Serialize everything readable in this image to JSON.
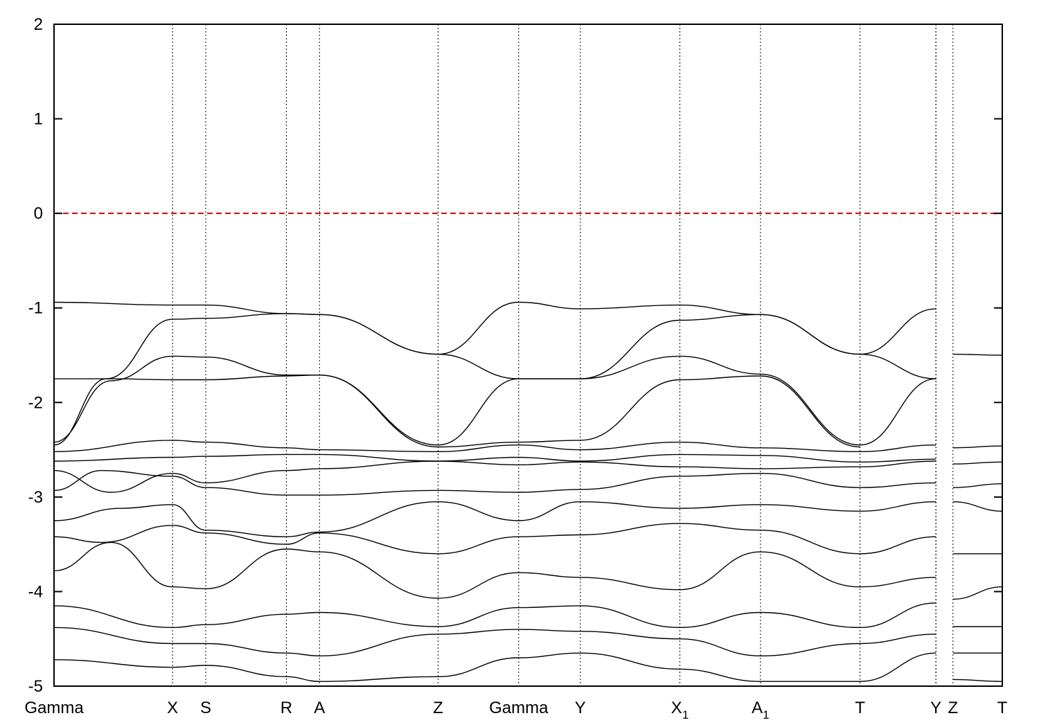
{
  "chart_data": {
    "type": "line",
    "title": "",
    "xlabel": "",
    "ylabel": "",
    "ylim": [
      -5,
      2
    ],
    "yticks": [
      "2",
      "1",
      "0",
      "-1",
      "-2",
      "-3",
      "-4",
      "-5"
    ],
    "ytick_values": [
      2,
      1,
      0,
      -1,
      -2,
      -3,
      -4,
      -5
    ],
    "xlim": [
      0,
      10
    ],
    "kpoints": [
      {
        "label": "Gamma",
        "sub": "",
        "x": 0.0
      },
      {
        "label": "X",
        "sub": "",
        "x": 1.25
      },
      {
        "label": "S",
        "sub": "",
        "x": 1.6
      },
      {
        "label": "R",
        "sub": "",
        "x": 2.45
      },
      {
        "label": "A",
        "sub": "",
        "x": 2.8
      },
      {
        "label": "Z",
        "sub": "",
        "x": 4.05
      },
      {
        "label": "Gamma",
        "sub": "",
        "x": 4.9
      },
      {
        "label": "Y",
        "sub": "",
        "x": 5.55
      },
      {
        "label": "X",
        "sub": "1",
        "x": 6.6
      },
      {
        "label": "A",
        "sub": "1",
        "x": 7.45
      },
      {
        "label": "T",
        "sub": "",
        "x": 8.5
      },
      {
        "label": "Y",
        "sub": "",
        "x": 9.3
      },
      {
        "label": "Z",
        "sub": "",
        "x": 9.48
      },
      {
        "label": "T",
        "sub": "",
        "x": 10.0
      }
    ],
    "break_after_kpoint_index": 11,
    "fermi_level": {
      "value": 0,
      "color": "#cc0000",
      "style": "dashed"
    },
    "grid": "vertical dotted lines at high-symmetry points",
    "colors": {
      "bands": "#000000",
      "fermi": "#cc0000"
    },
    "series": [
      {
        "x": [
          0,
          1.25,
          1.6,
          2.45,
          2.8,
          4.05,
          4.9,
          5.55,
          6.6,
          7.45,
          8.5,
          9.3
        ],
        "values": [
          -0.94,
          -0.97,
          -0.97,
          -1.06,
          -1.07,
          -1.49,
          -0.94,
          -1.01,
          -0.97,
          -1.07,
          -1.49,
          -1.01
        ]
      },
      {
        "x": [
          0,
          0.55,
          1.25,
          1.6,
          2.45,
          2.8,
          4.05,
          4.9,
          5.55,
          6.6,
          7.45,
          8.5,
          9.3
        ],
        "values": [
          -2.45,
          -1.75,
          -1.12,
          -1.11,
          -1.06,
          -1.07,
          -1.49,
          -1.75,
          -1.75,
          -1.13,
          -1.07,
          -1.49,
          -1.75
        ]
      },
      {
        "x": [
          0,
          0.6,
          1.25,
          1.6,
          2.45,
          2.8,
          4.05,
          4.9,
          5.55,
          6.6,
          7.45,
          8.5,
          9.3
        ],
        "values": [
          -2.42,
          -1.77,
          -1.51,
          -1.52,
          -1.71,
          -1.71,
          -2.45,
          -1.75,
          -1.75,
          -1.51,
          -1.7,
          -2.45,
          -1.75
        ]
      },
      {
        "x": [
          0,
          0.6,
          1.25,
          1.6,
          2.45,
          2.8,
          4.05,
          4.9,
          5.55,
          6.6,
          7.45,
          8.5
        ],
        "values": [
          -1.75,
          -1.75,
          -1.76,
          -1.76,
          -1.72,
          -1.71,
          -2.47,
          -2.42,
          -2.4,
          -1.76,
          -1.72,
          -2.47
        ]
      },
      {
        "x": [
          0,
          1.25,
          1.6,
          2.45,
          2.8,
          4.05,
          4.9,
          5.55,
          6.6,
          7.45,
          8.5,
          9.3
        ],
        "values": [
          -2.52,
          -2.4,
          -2.42,
          -2.48,
          -2.5,
          -2.52,
          -2.45,
          -2.5,
          -2.42,
          -2.48,
          -2.52,
          -2.45
        ]
      },
      {
        "x": [
          0,
          1.25,
          1.6,
          2.45,
          2.8,
          4.05,
          4.9,
          5.55,
          6.6,
          7.45,
          8.5,
          9.3
        ],
        "values": [
          -2.62,
          -2.58,
          -2.57,
          -2.55,
          -2.55,
          -2.62,
          -2.58,
          -2.62,
          -2.55,
          -2.56,
          -2.63,
          -2.6
        ]
      },
      {
        "x": [
          0,
          0.6,
          1.25,
          1.6,
          2.45,
          2.8,
          4.05,
          4.9,
          5.55,
          6.6,
          7.45,
          8.5,
          9.3
        ],
        "values": [
          -2.72,
          -2.95,
          -2.75,
          -2.85,
          -2.72,
          -2.7,
          -2.62,
          -2.66,
          -2.63,
          -2.68,
          -2.7,
          -2.68,
          -2.62
        ]
      },
      {
        "x": [
          0,
          0.5,
          1.25,
          1.6,
          2.45,
          2.8,
          4.05,
          4.9,
          5.55,
          6.6,
          7.45,
          8.5,
          9.3
        ],
        "values": [
          -2.93,
          -2.72,
          -2.78,
          -2.9,
          -2.98,
          -2.98,
          -2.93,
          -2.95,
          -2.92,
          -2.78,
          -2.75,
          -2.9,
          -2.85
        ]
      },
      {
        "x": [
          0,
          0.7,
          1.25,
          1.6,
          2.45,
          2.8,
          4.05,
          4.9,
          5.55,
          6.6,
          7.45,
          8.5,
          9.3
        ],
        "values": [
          -3.25,
          -3.12,
          -3.08,
          -3.35,
          -3.42,
          -3.37,
          -3.05,
          -3.25,
          -3.05,
          -3.12,
          -3.08,
          -3.15,
          -3.05
        ]
      },
      {
        "x": [
          0,
          0.5,
          1.25,
          1.6,
          2.45,
          2.8,
          4.05,
          4.9,
          5.55,
          6.6,
          7.45,
          8.5,
          9.3
        ],
        "values": [
          -3.42,
          -3.48,
          -3.3,
          -3.38,
          -3.5,
          -3.38,
          -3.6,
          -3.42,
          -3.4,
          -3.28,
          -3.35,
          -3.6,
          -3.42
        ]
      },
      {
        "x": [
          0,
          0.6,
          1.25,
          1.6,
          2.45,
          2.8,
          4.05,
          4.9,
          5.55,
          6.6,
          7.45,
          8.5,
          9.3
        ],
        "values": [
          -3.78,
          -3.48,
          -3.95,
          -3.97,
          -3.55,
          -3.58,
          -4.07,
          -3.8,
          -3.85,
          -3.98,
          -3.58,
          -3.95,
          -3.85
        ]
      },
      {
        "x": [
          0,
          1.25,
          1.6,
          2.45,
          2.8,
          4.05,
          4.9,
          5.55,
          6.6,
          7.45,
          8.5,
          9.3
        ],
        "values": [
          -4.15,
          -4.38,
          -4.35,
          -4.24,
          -4.22,
          -4.37,
          -4.17,
          -4.15,
          -4.38,
          -4.22,
          -4.38,
          -4.12
        ]
      },
      {
        "x": [
          0,
          1.25,
          1.6,
          2.45,
          2.8,
          4.05,
          4.9,
          5.55,
          6.6,
          7.45,
          8.5,
          9.3
        ],
        "values": [
          -4.38,
          -4.55,
          -4.55,
          -4.65,
          -4.68,
          -4.45,
          -4.4,
          -4.42,
          -4.5,
          -4.68,
          -4.55,
          -4.45
        ]
      },
      {
        "x": [
          0,
          1.25,
          1.6,
          2.45,
          2.8,
          4.05,
          4.9,
          5.55,
          6.6,
          7.45,
          8.5,
          9.3
        ],
        "values": [
          -4.72,
          -4.8,
          -4.78,
          -4.9,
          -4.95,
          -4.9,
          -4.7,
          -4.65,
          -4.82,
          -4.95,
          -4.95,
          -4.65
        ]
      },
      {
        "x": [
          9.48,
          10.0
        ],
        "values": [
          -1.49,
          -1.5
        ]
      },
      {
        "x": [
          9.48,
          10.0
        ],
        "values": [
          -2.48,
          -2.46
        ]
      },
      {
        "x": [
          9.48,
          10.0
        ],
        "values": [
          -2.65,
          -2.63
        ]
      },
      {
        "x": [
          9.48,
          10.0
        ],
        "values": [
          -2.9,
          -2.86
        ]
      },
      {
        "x": [
          9.48,
          10.0
        ],
        "values": [
          -3.05,
          -3.15
        ]
      },
      {
        "x": [
          9.48,
          10.0
        ],
        "values": [
          -3.6,
          -3.6
        ]
      },
      {
        "x": [
          9.48,
          10.0
        ],
        "values": [
          -4.08,
          -3.95
        ]
      },
      {
        "x": [
          9.48,
          10.0
        ],
        "values": [
          -4.37,
          -4.37
        ]
      },
      {
        "x": [
          9.48,
          10.0
        ],
        "values": [
          -4.65,
          -4.65
        ]
      },
      {
        "x": [
          9.48,
          10.0
        ],
        "values": [
          -4.93,
          -4.95
        ]
      }
    ]
  }
}
